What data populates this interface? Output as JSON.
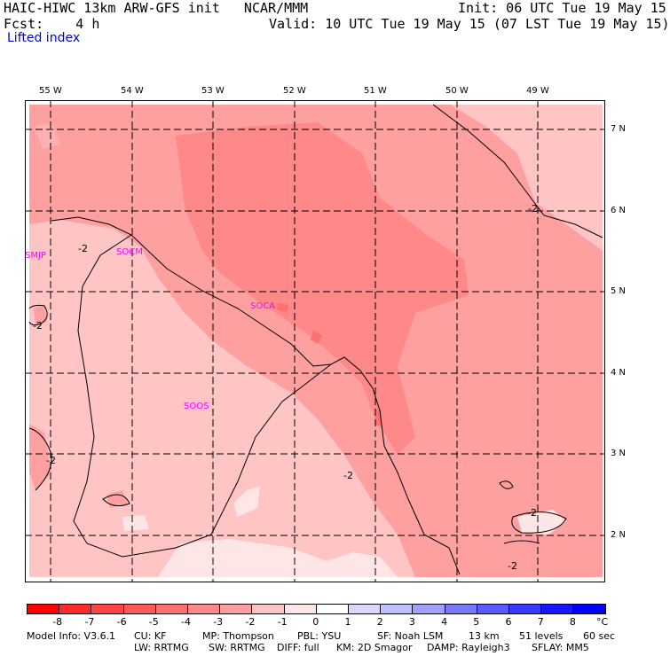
{
  "header": {
    "line1_left": "HAIC-HIWC 13km ARW-GFS init   NCAR/MMM",
    "line1_right": "Init: 06 UTC Tue 19 May 15",
    "line2_left": "Fcst:    4 h",
    "line2_right": "Valid: 10 UTC Tue 19 May 15 (07 LST Tue 19 May 15)",
    "field": "Lifted index"
  },
  "map": {
    "longitudes": [
      "55 W",
      "54 W",
      "53 W",
      "52 W",
      "51 W",
      "50 W",
      "49 W"
    ],
    "latitudes": [
      "7 N",
      "6 N",
      "5 N",
      "4 N",
      "3 N",
      "2 N"
    ],
    "stations": [
      "SMJP",
      "SOCM",
      "SOCA",
      "SOOS"
    ],
    "contour_label": "-2"
  },
  "colorbar": {
    "labels": [
      "-8",
      "-7",
      "-6",
      "-5",
      "-4",
      "-3",
      "-2",
      "-1",
      "0",
      "1",
      "2",
      "3",
      "4",
      "5",
      "6",
      "7",
      "8"
    ],
    "unit": "°C",
    "colors": [
      "#ff0000",
      "#ff2a2a",
      "#ff4444",
      "#ff5a5a",
      "#ff7070",
      "#ff8888",
      "#ffa0a0",
      "#ffc4c4",
      "#ffe6e6",
      "#ffffff",
      "#d8d8ff",
      "#c0c0ff",
      "#a0a0ff",
      "#7878ff",
      "#5a5aff",
      "#3a3aff",
      "#1616ff",
      "#0000ff"
    ]
  },
  "footer": {
    "row1": [
      "Model Info: V3.6.1",
      "CU: KF",
      "MP: Thompson",
      "PBL: YSU",
      "SF: Noah LSM",
      "13 km",
      "51 levels",
      "60 sec"
    ],
    "row2": [
      "LW: RRTMG",
      "SW: RRTMG",
      "DIFF: full",
      "KM: 2D Smagor",
      "DAMP: Rayleigh3",
      "SFLAY: MM5"
    ]
  }
}
